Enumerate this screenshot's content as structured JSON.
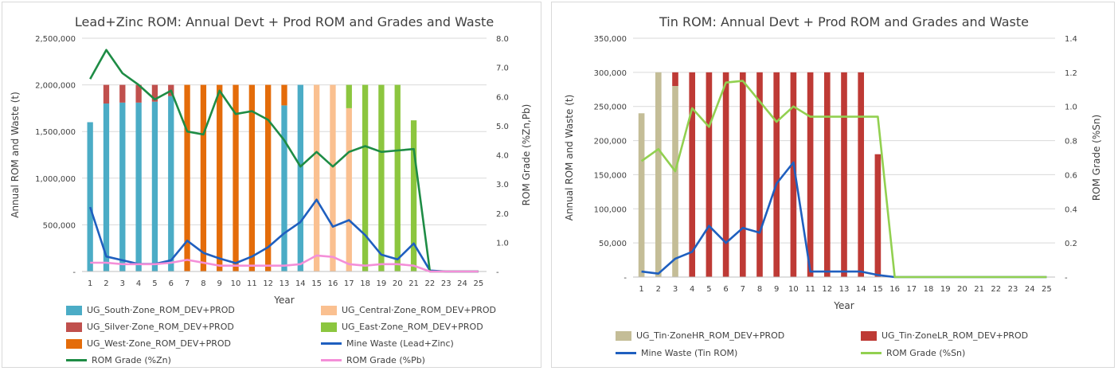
{
  "chart_data": [
    {
      "type": "bar",
      "title": "Lead+Zinc ROM: Annual Devt + Prod ROM and Grades and Waste",
      "xlabel": "Year",
      "ylabel": "Annual ROM and Waste (t)",
      "y2label": "ROM Grade (%Zn,Pb)",
      "ylim": [
        0,
        2500000
      ],
      "y2lim": [
        0,
        8
      ],
      "yticks": [
        "-",
        "500,000",
        "1,000,000",
        "1,500,000",
        "2,000,000",
        "2,500,000"
      ],
      "y2ticks": [
        "-",
        "1.0",
        "2.0",
        "3.0",
        "4.0",
        "5.0",
        "6.0",
        "7.0",
        "8.0"
      ],
      "categories": [
        "1",
        "2",
        "3",
        "4",
        "5",
        "6",
        "7",
        "8",
        "9",
        "10",
        "11",
        "12",
        "13",
        "14",
        "15",
        "16",
        "17",
        "18",
        "19",
        "20",
        "21",
        "22",
        "23",
        "24",
        "25"
      ],
      "bar_series": [
        {
          "name": "UG_South·Zone_ROM_DEV+PROD",
          "color": "#4bacc6",
          "values": [
            1600000,
            1800000,
            1810000,
            1810000,
            1820000,
            1880000,
            0,
            0,
            0,
            0,
            0,
            0,
            1780000,
            2000000,
            0,
            0,
            0,
            0,
            0,
            0,
            0,
            0,
            0,
            0,
            0
          ]
        },
        {
          "name": "UG_Silver·Zone_ROM_DEV+PROD",
          "color": "#c0504d",
          "values": [
            0,
            200000,
            190000,
            190000,
            180000,
            120000,
            0,
            0,
            0,
            0,
            0,
            0,
            0,
            0,
            0,
            0,
            0,
            0,
            0,
            0,
            0,
            0,
            0,
            0,
            0
          ]
        },
        {
          "name": "UG_West·Zone_ROM_DEV+PROD",
          "color": "#e46c0a",
          "values": [
            0,
            0,
            0,
            0,
            0,
            0,
            2000000,
            2000000,
            2000000,
            2000000,
            2000000,
            2000000,
            220000,
            0,
            0,
            0,
            0,
            0,
            0,
            0,
            0,
            0,
            0,
            0,
            0
          ]
        },
        {
          "name": "UG_Central·Zone_ROM_DEV+PROD",
          "color": "#fac090",
          "values": [
            0,
            0,
            0,
            0,
            0,
            0,
            0,
            0,
            0,
            0,
            0,
            0,
            0,
            0,
            2000000,
            2000000,
            1750000,
            0,
            0,
            0,
            0,
            0,
            0,
            0,
            0
          ]
        },
        {
          "name": "UG_East·Zone_ROM_DEV+PROD",
          "color": "#8cc63f",
          "values": [
            0,
            0,
            0,
            0,
            0,
            0,
            0,
            0,
            0,
            0,
            0,
            0,
            0,
            0,
            0,
            0,
            250000,
            2000000,
            2000000,
            2000000,
            1620000,
            0,
            0,
            0,
            0
          ]
        }
      ],
      "line_series": [
        {
          "name": "Mine Waste (Lead+Zinc)",
          "color": "#1f5fbf",
          "axis": "left",
          "values": [
            690000,
            160000,
            120000,
            80000,
            80000,
            120000,
            330000,
            200000,
            140000,
            90000,
            160000,
            260000,
            410000,
            530000,
            770000,
            480000,
            550000,
            390000,
            180000,
            130000,
            300000,
            10000,
            0,
            0,
            0
          ]
        },
        {
          "name": "ROM Grade (%Zn)",
          "color": "#1e8c45",
          "axis": "right",
          "values": [
            6.6,
            7.6,
            6.8,
            6.4,
            5.9,
            6.2,
            4.8,
            4.7,
            6.2,
            5.4,
            5.5,
            5.2,
            4.5,
            3.6,
            4.1,
            3.6,
            4.1,
            4.3,
            4.1,
            4.15,
            4.2,
            0,
            0,
            0,
            0
          ]
        },
        {
          "name": "ROM Grade (%Pb)",
          "color": "#f48fd8",
          "axis": "right",
          "values": [
            0.3,
            0.3,
            0.25,
            0.25,
            0.25,
            0.3,
            0.4,
            0.3,
            0.2,
            0.2,
            0.2,
            0.2,
            0.2,
            0.25,
            0.55,
            0.5,
            0.25,
            0.2,
            0.25,
            0.25,
            0.2,
            0,
            0,
            0,
            0
          ]
        }
      ],
      "legend": [
        {
          "label": "UG_South·Zone_ROM_DEV+PROD",
          "color": "#4bacc6",
          "kind": "bar"
        },
        {
          "label": "UG_Central·Zone_ROM_DEV+PROD",
          "color": "#fac090",
          "kind": "bar"
        },
        {
          "label": "UG_Silver·Zone_ROM_DEV+PROD",
          "color": "#c0504d",
          "kind": "bar"
        },
        {
          "label": "UG_East·Zone_ROM_DEV+PROD",
          "color": "#8cc63f",
          "kind": "bar"
        },
        {
          "label": "UG_West·Zone_ROM_DEV+PROD",
          "color": "#e46c0a",
          "kind": "bar"
        },
        {
          "label": "Mine Waste (Lead+Zinc)",
          "color": "#1f5fbf",
          "kind": "line"
        },
        {
          "label": "ROM Grade (%Zn)",
          "color": "#1e8c45",
          "kind": "line"
        },
        {
          "label": "ROM Grade (%Pb)",
          "color": "#f48fd8",
          "kind": "line"
        }
      ],
      "legend_placement": "bottom"
    },
    {
      "type": "bar",
      "title": "Tin ROM: Annual Devt + Prod ROM and Grades and Waste",
      "xlabel": "Year",
      "ylabel": "Annual ROM and Waste (t)",
      "y2label": "ROM Grade (%Sn)",
      "ylim": [
        0,
        350000
      ],
      "y2lim": [
        0,
        1.4
      ],
      "yticks": [
        "-",
        "50,000",
        "100,000",
        "150,000",
        "200,000",
        "250,000",
        "300,000",
        "350,000"
      ],
      "y2ticks": [
        "-",
        "0.2",
        "0.4",
        "0.6",
        "0.8",
        "1.0",
        "1.2",
        "1.4"
      ],
      "categories": [
        "1",
        "2",
        "3",
        "4",
        "5",
        "6",
        "7",
        "8",
        "9",
        "10",
        "11",
        "12",
        "13",
        "14",
        "15",
        "16",
        "17",
        "18",
        "19",
        "20",
        "21",
        "22",
        "23",
        "24",
        "25"
      ],
      "bar_series": [
        {
          "name": "UG_Tin·ZoneHR_ROM_DEV+PROD",
          "color": "#c4bd97",
          "values": [
            240000,
            300000,
            280000,
            0,
            0,
            0,
            0,
            0,
            0,
            0,
            0,
            0,
            0,
            0,
            0,
            0,
            0,
            0,
            0,
            0,
            0,
            0,
            0,
            0,
            0
          ]
        },
        {
          "name": "UG_Tin·ZoneLR_ROM_DEV+PROD",
          "color": "#be3a35",
          "values": [
            0,
            0,
            20000,
            300000,
            300000,
            300000,
            300000,
            300000,
            300000,
            300000,
            300000,
            300000,
            300000,
            300000,
            180000,
            0,
            0,
            0,
            0,
            0,
            0,
            0,
            0,
            0,
            0
          ]
        }
      ],
      "line_series": [
        {
          "name": "Mine Waste (Tin ROM)",
          "color": "#1f5fbf",
          "axis": "left",
          "values": [
            8000,
            5000,
            27000,
            37000,
            75000,
            50000,
            72000,
            65000,
            137000,
            168000,
            8000,
            8000,
            8000,
            8000,
            3000,
            0,
            0,
            0,
            0,
            0,
            0,
            0,
            0,
            0,
            0
          ]
        },
        {
          "name": "ROM Grade (%Sn)",
          "color": "#92d050",
          "axis": "right",
          "values": [
            0.68,
            0.75,
            0.62,
            0.99,
            0.88,
            1.14,
            1.15,
            1.03,
            0.91,
            1.0,
            0.94,
            0.94,
            0.94,
            0.94,
            0.94,
            0,
            0,
            0,
            0,
            0,
            0,
            0,
            0,
            0,
            0
          ]
        }
      ],
      "legend": [
        {
          "label": "UG_Tin·ZoneHR_ROM_DEV+PROD",
          "color": "#c4bd97",
          "kind": "bar"
        },
        {
          "label": "UG_Tin·ZoneLR_ROM_DEV+PROD",
          "color": "#be3a35",
          "kind": "bar"
        },
        {
          "label": "Mine Waste (Tin ROM)",
          "color": "#1f5fbf",
          "kind": "line"
        },
        {
          "label": "ROM Grade (%Sn)",
          "color": "#92d050",
          "kind": "line"
        }
      ],
      "legend_placement": "bottom"
    }
  ]
}
